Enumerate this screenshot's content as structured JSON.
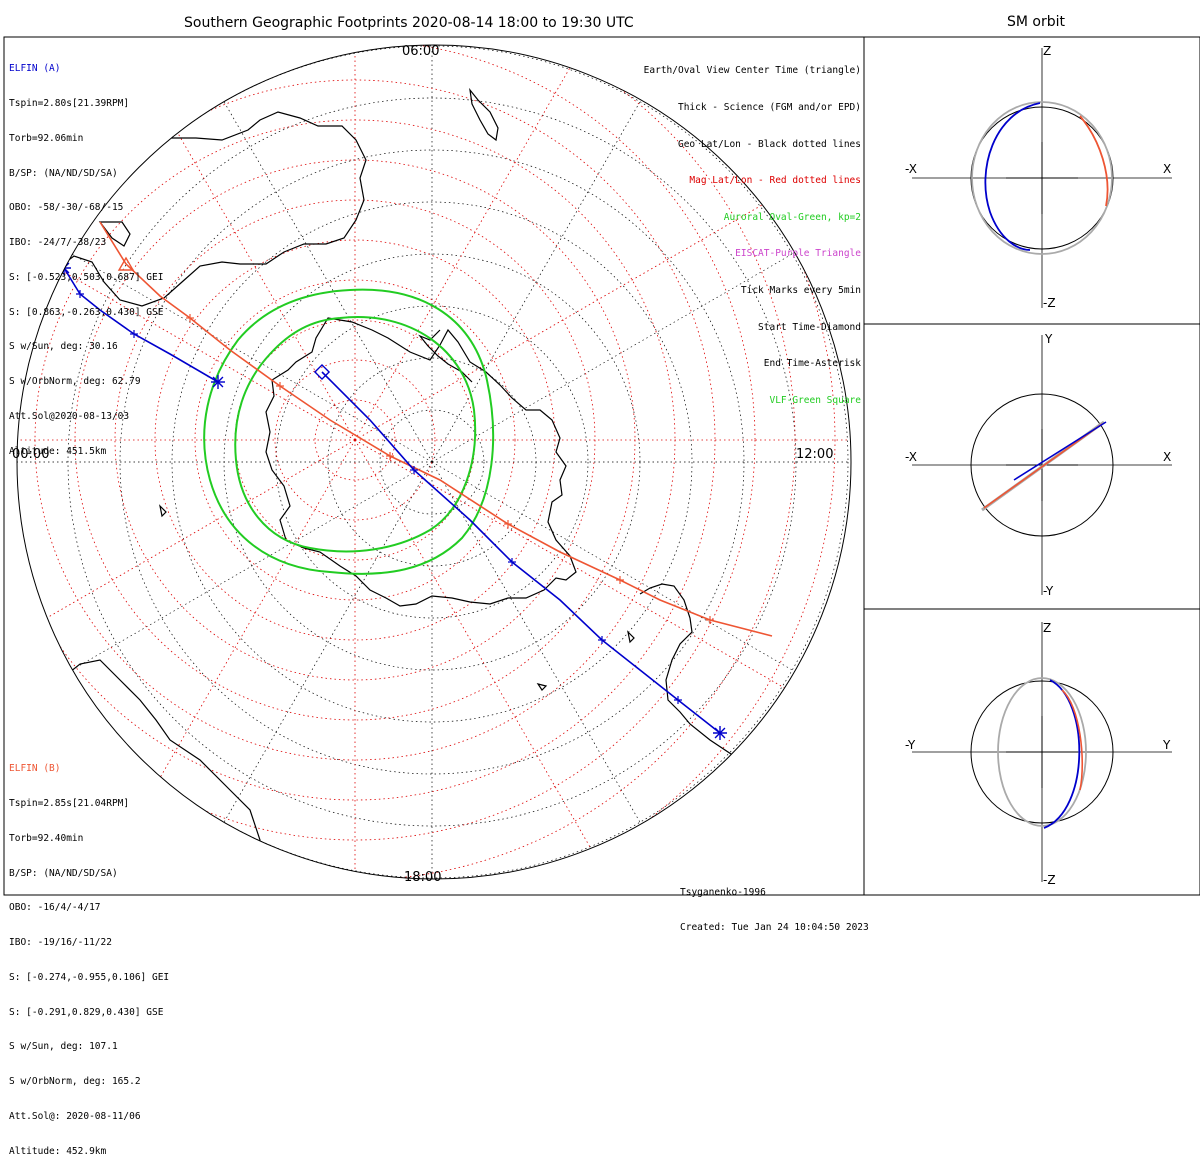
{
  "main_title": "Southern Geographic Footprints 2020-08-14 18:00 to 19:30 UTC",
  "side_title": "SM orbit",
  "time_labels": {
    "top": "06:00",
    "left": "00:00",
    "right": "12:00",
    "bottom": "18:00"
  },
  "legend": [
    {
      "text": "Earth/Oval View Center Time (triangle)",
      "color": "#000000"
    },
    {
      "text": "Thick - Science (FGM and/or EPD)",
      "color": "#000000"
    },
    {
      "text": "Geo Lat/Lon - Black dotted lines",
      "color": "#000000"
    },
    {
      "text": "Mag Lat/Lon - Red dotted lines",
      "color": "#dd0000"
    },
    {
      "text": "Auroral Oval-Green, kp=2",
      "color": "#22cc22"
    },
    {
      "text": "EISCAT-Purple Triangle",
      "color": "#cc44cc"
    },
    {
      "text": "Tick Marks every 5min",
      "color": "#000000"
    },
    {
      "text": "Start Time-Diamond",
      "color": "#000000"
    },
    {
      "text": "End Time-Asterisk",
      "color": "#000000"
    },
    {
      "text": "VLF-Green Square",
      "color": "#22cc22"
    }
  ],
  "elfin_a": {
    "name": "ELFIN (A)",
    "color": "#0000cc",
    "lines": [
      "Tspin=2.80s[21.39RPM]",
      "Torb=92.06min",
      "B/SP: (NA/ND/SD/SA)",
      "OBO: -58/-30/-68/-15",
      "IBO: -24/7/-38/23",
      "S: [-0.523,0.503,0.687] GEI",
      "S: [0.863,-0.263,0.430] GSE",
      "S w/Sun, deg: 30.16",
      "S w/OrbNorm, deg: 62.79",
      "Att.Sol@2020-08-13/03",
      "Altitude: 451.5km"
    ]
  },
  "elfin_b": {
    "name": "ELFIN (B)",
    "color": "#ee5533",
    "lines": [
      "Tspin=2.85s[21.04RPM]",
      "Torb=92.40min",
      "B/SP: (NA/ND/SD/SA)",
      "OBO: -16/4/-4/17",
      "IBO: -19/16/-11/22",
      "S: [-0.274,-0.955,0.106] GEI",
      "S: [-0.291,0.829,0.430] GSE",
      "S w/Sun, deg: 107.1",
      "S w/OrbNorm, deg: 165.2",
      "Att.Sol@: 2020-08-11/06",
      "Altitude: 452.9km"
    ]
  },
  "footer": {
    "model": "Tsyganenko-1996",
    "created": "Created: Tue Jan 24 10:04:50 2023"
  },
  "sm_panels": [
    {
      "top": "Z",
      "bottom": "-Z",
      "left": "-X",
      "right": "X"
    },
    {
      "top": "Y",
      "bottom": "-Y",
      "left": "-X",
      "right": "X"
    },
    {
      "top": "Z",
      "bottom": "-Z",
      "left": "-Y",
      "right": "Y"
    }
  ],
  "chart_data": [
    {
      "type": "line",
      "description": "Southern hemisphere polar map footprints",
      "series": [
        {
          "name": "ELFIN (A)",
          "color": "#0000cc"
        },
        {
          "name": "ELFIN (B)",
          "color": "#ee5533"
        }
      ],
      "colors": {
        "geo_grid": "#000000",
        "mag_grid": "#dd0000",
        "auroral_oval": "#22cc22",
        "coast": "#000000"
      }
    },
    {
      "type": "line",
      "description": "SM orbit XZ projection",
      "axes": [
        "-X",
        "X",
        "-Z",
        "Z"
      ]
    },
    {
      "type": "line",
      "description": "SM orbit XY projection",
      "axes": [
        "-X",
        "X",
        "-Y",
        "Y"
      ]
    },
    {
      "type": "line",
      "description": "SM orbit YZ projection",
      "axes": [
        "-Y",
        "Y",
        "-Z",
        "Z"
      ]
    }
  ]
}
